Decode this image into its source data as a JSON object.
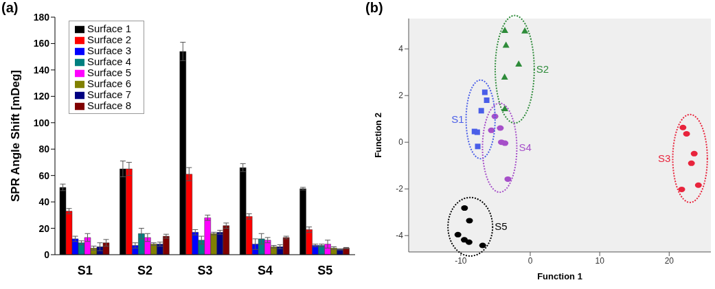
{
  "chart_data": [
    {
      "type": "bar",
      "title": "(a)",
      "ylabel": "SPR Angle Shift [mDeg]",
      "categories": [
        "S1",
        "S2",
        "S3",
        "S4",
        "S5"
      ],
      "ylim": [
        0,
        180
      ],
      "yticks": [
        0,
        20,
        40,
        60,
        80,
        100,
        120,
        140,
        160,
        180
      ],
      "grid": false,
      "legend": "top left",
      "series": [
        {
          "name": "Surface 1",
          "color": "#000000",
          "values": [
            51,
            65,
            154,
            66,
            50
          ],
          "errors": [
            2.5,
            6,
            7,
            3,
            1
          ]
        },
        {
          "name": "Surface 2",
          "color": "#ff0000",
          "values": [
            33,
            65,
            61,
            29,
            19
          ],
          "errors": [
            2,
            5,
            5,
            2,
            2
          ]
        },
        {
          "name": "Surface 3",
          "color": "#0000ff",
          "values": [
            12,
            7,
            17,
            8,
            7
          ],
          "errors": [
            2,
            2,
            2,
            4,
            1
          ]
        },
        {
          "name": "Surface 4",
          "color": "#008080",
          "values": [
            9,
            16,
            11,
            12,
            7
          ],
          "errors": [
            1.5,
            4,
            3,
            4,
            1
          ]
        },
        {
          "name": "Surface 5",
          "color": "#ff00ff",
          "values": [
            13,
            13,
            28,
            11,
            8
          ],
          "errors": [
            3,
            3,
            2,
            2,
            3
          ]
        },
        {
          "name": "Surface 6",
          "color": "#808000",
          "values": [
            5,
            8,
            16,
            6,
            5
          ],
          "errors": [
            1.5,
            1,
            1,
            1,
            1
          ]
        },
        {
          "name": "Surface 7",
          "color": "#000080",
          "values": [
            6,
            8,
            17,
            6,
            4
          ],
          "errors": [
            3,
            1.5,
            1.5,
            1.5,
            0.5
          ]
        },
        {
          "name": "Surface 8",
          "color": "#800000",
          "values": [
            9,
            14,
            22,
            13,
            5
          ],
          "errors": [
            2.5,
            1.5,
            2,
            1,
            0.5
          ]
        }
      ]
    },
    {
      "type": "scatter",
      "title": "(b)",
      "xlabel": "Function 1",
      "ylabel": "Function 2",
      "xlim": [
        -17.5,
        26
      ],
      "xticks": [
        -10,
        0,
        10,
        20
      ],
      "ylim": [
        -4.7,
        5.3
      ],
      "yticks": [
        -4,
        -2,
        0,
        2,
        4
      ],
      "grid": false,
      "legend": false,
      "series": [
        {
          "name": "S1",
          "color": "#4a5ee8",
          "marker": "square",
          "x": [
            -6.54,
            -6.27,
            -7.05,
            -8.03,
            -7.63,
            -7.56
          ],
          "values": [
            2.14,
            1.8,
            1.35,
            0.46,
            0.43,
            -0.18
          ]
        },
        {
          "name": "S2",
          "color": "#2e8b3a",
          "marker": "triangle",
          "x": [
            -3.66,
            -0.78,
            -3.49,
            -1.66,
            -3.69,
            -3.66
          ],
          "values": [
            4.8,
            4.78,
            4.17,
            3.36,
            2.8,
            1.45
          ]
        },
        {
          "name": "S3",
          "color": "#e8243c",
          "marker": "circle",
          "x": [
            21.98,
            22.5,
            23.6,
            23.2,
            24.2,
            21.8
          ],
          "values": [
            0.63,
            0.36,
            -0.49,
            -0.9,
            -1.84,
            -2.02
          ]
        },
        {
          "name": "S4",
          "color": "#a64fc9",
          "marker": "circle",
          "x": [
            -5.08,
            -4.31,
            -5.59,
            -4.15,
            -3.64,
            -3.22
          ],
          "values": [
            1.11,
            0.61,
            0.51,
            0,
            -0.04,
            -1.58
          ]
        },
        {
          "name": "S5",
          "color": "#000000",
          "marker": "circle",
          "x": [
            -9.46,
            -8.75,
            -10.41,
            -9.49,
            -8.81,
            -6.85
          ],
          "values": [
            -2.82,
            -3.36,
            -3.96,
            -4.18,
            -4.28,
            -4.42
          ]
        }
      ]
    }
  ]
}
